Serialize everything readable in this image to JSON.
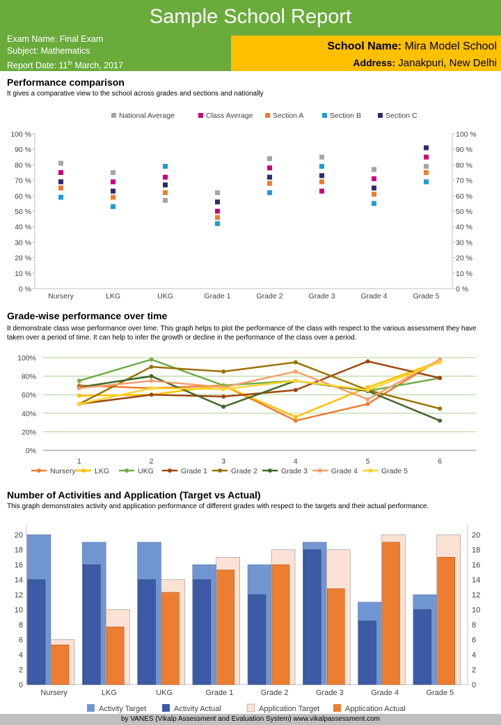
{
  "header": {
    "title": "Sample School Report",
    "exam_name": "Exam Name: Final Exam",
    "subject": "Subject: Mathematics",
    "report_date_prefix": "Report Date: 11",
    "report_date_sup": "th",
    "report_date_suffix": " March, 2017",
    "school_label": "School Name:",
    "school_value": " Mira Model School",
    "address_label": "Address:",
    "address_value": " Janakpuri, New Delhi"
  },
  "sections": {
    "performance_title": "Performance comparison",
    "performance_desc": "It gives a comparative view to the school across grades and sections and nationally",
    "gradewise_title": "Grade-wise performance over time",
    "gradewise_desc": "It demonstrate class wise performance over time. This graph helps to plot the performance of the class with respect to the various assessment they have taken over a period of time. It can help to infer the growth or decline in the performance of the class over a period.",
    "activities_title": "Number of Activities and Application (Target vs Actual)",
    "activities_desc": "This graph demonstrates activity and application performance of different grades with respect to the targets and their actual performance."
  },
  "footer": "by VANES (Vikalp Assessment and Evaluation System) www.vikalpassessment.com",
  "chart_data": [
    {
      "type": "scatter",
      "categories": [
        "Nursery",
        "LKG",
        "UKG",
        "Grade 1",
        "Grade 2",
        "Grade 3",
        "Grade 4",
        "Grade 5"
      ],
      "ylim": [
        0,
        100
      ],
      "yticks": [
        "0 %",
        "10 %",
        "20 %",
        "30 %",
        "40 %",
        "50 %",
        "60 %",
        "70 %",
        "80 %",
        "90 %",
        "100 %"
      ],
      "grid": false,
      "legend": "top",
      "series": [
        {
          "name": "National Average",
          "color": "#a5a5a5",
          "values": [
            81,
            75,
            57,
            62,
            84,
            85,
            77,
            79
          ]
        },
        {
          "name": "Class Average",
          "color": "#cc0080",
          "values": [
            75,
            69,
            72,
            50,
            78,
            63,
            71,
            85
          ]
        },
        {
          "name": "Section A",
          "color": "#ed7d31",
          "values": [
            65,
            59,
            62,
            46,
            68,
            69,
            61,
            75
          ]
        },
        {
          "name": "Section B",
          "color": "#1f9bd7",
          "values": [
            59,
            53,
            79,
            42,
            62,
            79,
            55,
            69
          ]
        },
        {
          "name": "Section C",
          "color": "#2e2b6e",
          "values": [
            69,
            63,
            67,
            56,
            72,
            73,
            65,
            91
          ]
        }
      ]
    },
    {
      "type": "line",
      "x": [
        1,
        2,
        3,
        4,
        5,
        6
      ],
      "ylim": [
        0,
        100
      ],
      "yticks": [
        "0%",
        "20%",
        "40%",
        "60%",
        "80%",
        "100%"
      ],
      "grid": true,
      "legend": "bottom",
      "series": [
        {
          "name": "Nursery",
          "color": "#ed7d31",
          "values": [
            70,
            67,
            70,
            32,
            50,
            98
          ]
        },
        {
          "name": "LKG",
          "color": "#ffc000",
          "values": [
            59,
            60,
            70,
            36,
            68,
            96
          ]
        },
        {
          "name": "UKG",
          "color": "#70ad47",
          "values": [
            75,
            98,
            70,
            75,
            64,
            78
          ]
        },
        {
          "name": "Grade 1",
          "color": "#9e480e",
          "values": [
            50,
            60,
            58,
            65,
            96,
            78
          ]
        },
        {
          "name": "Grade 2",
          "color": "#997300",
          "values": [
            50,
            90,
            85,
            95,
            65,
            45
          ]
        },
        {
          "name": "Grade 3",
          "color": "#43682b",
          "values": [
            68,
            80,
            47,
            75,
            64,
            32
          ]
        },
        {
          "name": "Grade 4",
          "color": "#f4a06b",
          "values": [
            67,
            75,
            68,
            85,
            55,
            98
          ]
        },
        {
          "name": "Grade 5",
          "color": "#ffd42e",
          "values": [
            50,
            67,
            66,
            75,
            65,
            95
          ]
        }
      ]
    },
    {
      "type": "bar",
      "categories": [
        "Nursery",
        "LKG",
        "UKG",
        "Grade 1",
        "Grade 2",
        "Grade 3",
        "Grade 4",
        "Grade 5"
      ],
      "ylim": [
        0,
        20
      ],
      "yticks": [
        "0",
        "2",
        "4",
        "6",
        "8",
        "10",
        "12",
        "14",
        "16",
        "18",
        "20"
      ],
      "grid": false,
      "legend": "bottom",
      "series": [
        {
          "name": "Activity Target",
          "color": "#7096d1",
          "values": [
            20,
            19,
            19,
            16,
            16,
            19,
            11,
            12
          ]
        },
        {
          "name": "Activity Actual",
          "color": "#3c5aa5",
          "values": [
            14,
            16,
            14,
            14,
            12,
            18,
            8.5,
            10
          ]
        },
        {
          "name": "Application Target",
          "color": "#fbe2d5",
          "values": [
            6,
            10,
            14,
            17,
            18,
            18,
            20,
            20
          ]
        },
        {
          "name": "Application Actual",
          "color": "#ed7d31",
          "values": [
            5.3,
            7.7,
            12.3,
            15.3,
            16,
            12.8,
            19,
            17
          ]
        }
      ]
    }
  ]
}
